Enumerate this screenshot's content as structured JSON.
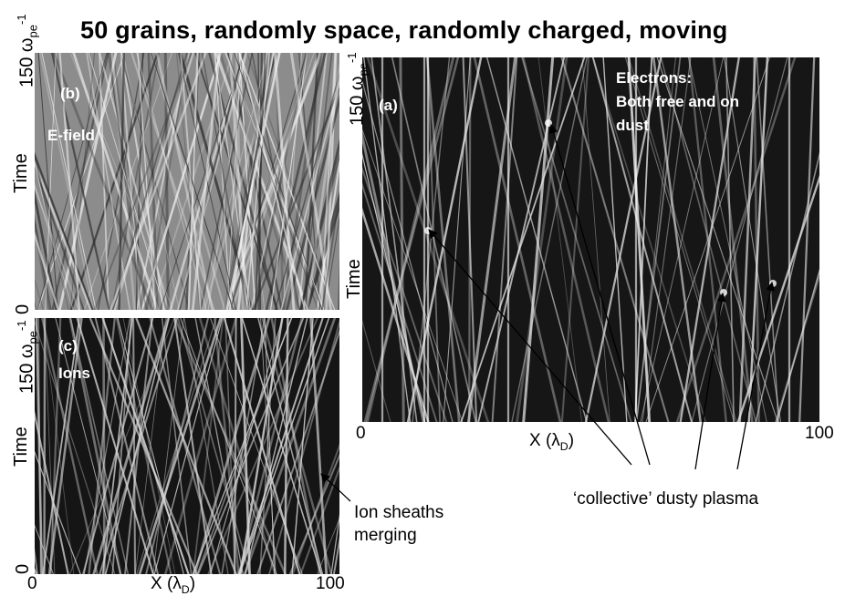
{
  "title": "50 grains, randomly space, randomly charged, moving",
  "panels": {
    "a": {
      "label": "(a)",
      "description": "Electrons:\nBoth free and on\ndust",
      "ylabel": "Time",
      "ytop": "150 ω",
      "ytop_sub": "pe",
      "ytop_sup": "-1",
      "x_min": "0",
      "x_max": "100",
      "xlabel": "X (λ",
      "xlabel_sub": "D",
      "xlabel_end": ")"
    },
    "b": {
      "label": "(b)",
      "description": "E-field",
      "ylabel": "Time",
      "ytop": "150 ω",
      "ytop_sub": "pe",
      "ytop_sup": "-1",
      "ybottom": "0"
    },
    "c": {
      "label": "(c)",
      "description": "Ions",
      "ylabel": "Time",
      "ytop": "150 ω",
      "ytop_sub": "pe",
      "ytop_sup": "-1",
      "ybottom": "0",
      "x_min": "0",
      "x_max": "100",
      "xlabel": "X (λ",
      "xlabel_sub": "D",
      "xlabel_end": ")"
    }
  },
  "annotations": {
    "ion_sheaths": "Ion sheaths\nmerging",
    "collective": "‘collective’ dusty plasma"
  },
  "colors": {
    "panel_bg": "#1b1b1b",
    "efield_bg": "#8c8c8c",
    "trace": "#ffffff"
  }
}
